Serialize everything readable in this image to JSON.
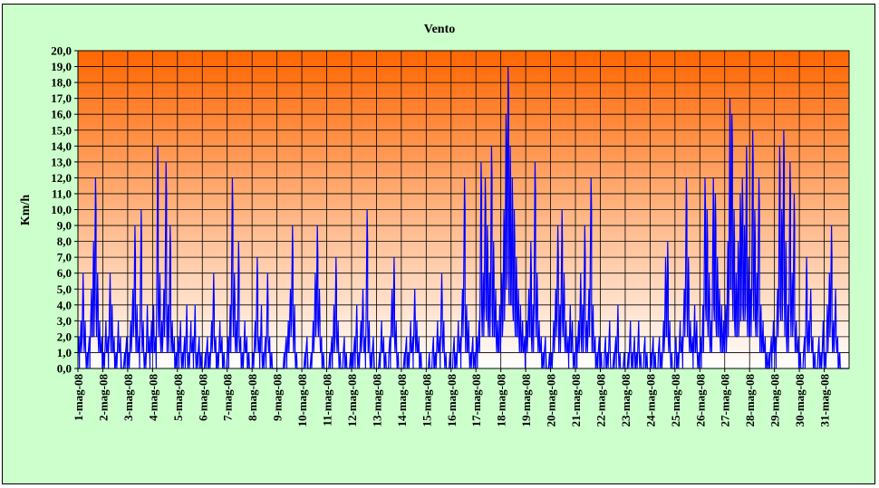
{
  "chart_data": {
    "type": "line",
    "title": "Vento",
    "xlabel": "",
    "ylabel": "Km/h",
    "ylim": [
      0,
      20
    ],
    "ytick_step": 1,
    "grid": true,
    "legend": "none",
    "plot_background": "gradient orange (#ff6600) top to white (#ffffff) bottom",
    "colors": {
      "series": "#0000ff",
      "frame_bg": "#ccffcc",
      "bg_top": "#ff6600",
      "bg_bottom": "#ffffff",
      "grid": "#000000"
    },
    "categories": [
      "1-mag-08",
      "2-mag-08",
      "3-mag-08",
      "4-mag-08",
      "5-mag-08",
      "6-mag-08",
      "7-mag-08",
      "8-mag-08",
      "9-mag-08",
      "10-mag-08",
      "11-mag-08",
      "12-mag-08",
      "13-mag-08",
      "14-mag-08",
      "15-mag-08",
      "16-mag-08",
      "17-mag-08",
      "18-mag-08",
      "19-mag-08",
      "20-mag-08",
      "21-mag-08",
      "22-mag-08",
      "23-mag-08",
      "24-mag-08",
      "25-mag-08",
      "26-mag-08",
      "27-mag-08",
      "28-mag-08",
      "29-mag-08",
      "30-mag-08",
      "31-mag-08"
    ],
    "series": [
      {
        "values": [
          [
            2,
            3,
            6,
            3,
            1,
            2,
            5,
            8,
            12,
            6,
            3,
            2
          ],
          [
            1,
            3,
            2,
            6,
            4,
            2,
            1,
            3,
            2,
            0,
            1,
            2
          ],
          [
            1,
            3,
            5,
            9,
            4,
            2,
            10,
            3,
            1,
            4,
            2,
            3
          ],
          [
            4,
            2,
            14,
            6,
            3,
            5,
            13,
            4,
            9,
            3,
            2,
            1
          ],
          [
            2,
            3,
            1,
            2,
            4,
            1,
            3,
            2,
            4,
            1,
            2,
            1
          ],
          [
            0,
            1,
            2,
            1,
            3,
            6,
            2,
            1,
            3,
            2,
            1,
            0
          ],
          [
            2,
            4,
            12,
            6,
            3,
            8,
            2,
            1,
            3,
            2,
            1,
            0
          ],
          [
            1,
            3,
            7,
            2,
            4,
            1,
            2,
            6,
            2,
            1,
            0,
            0
          ],
          [
            0,
            0,
            0,
            1,
            2,
            3,
            5,
            9,
            4,
            1,
            0,
            0
          ],
          [
            0,
            1,
            2,
            0,
            1,
            3,
            6,
            9,
            5,
            2,
            1,
            0
          ],
          [
            0,
            1,
            2,
            4,
            7,
            3,
            1,
            0,
            2,
            1,
            0,
            1
          ],
          [
            1,
            2,
            4,
            1,
            3,
            5,
            2,
            10,
            3,
            1,
            2,
            0
          ],
          [
            0,
            1,
            3,
            2,
            1,
            0,
            2,
            5,
            7,
            3,
            1,
            0
          ],
          [
            0,
            1,
            2,
            1,
            3,
            2,
            5,
            3,
            2,
            1,
            0,
            0
          ],
          [
            0,
            1,
            0,
            2,
            1,
            3,
            2,
            6,
            3,
            1,
            0,
            1
          ],
          [
            0,
            2,
            1,
            3,
            2,
            5,
            12,
            4,
            3,
            1,
            2,
            1
          ],
          [
            2,
            3,
            13,
            6,
            12,
            9,
            6,
            14,
            8,
            5,
            3,
            4
          ],
          [
            6,
            10,
            16,
            19,
            14,
            12,
            10,
            7,
            5,
            4,
            3,
            2
          ],
          [
            3,
            5,
            8,
            4,
            13,
            6,
            3,
            2,
            1,
            2,
            0,
            1
          ],
          [
            1,
            3,
            5,
            9,
            4,
            10,
            6,
            3,
            2,
            4,
            3,
            1
          ],
          [
            2,
            3,
            6,
            4,
            9,
            3,
            5,
            12,
            4,
            2,
            1,
            2
          ],
          [
            1,
            0,
            2,
            1,
            3,
            0,
            1,
            2,
            4,
            1,
            0,
            1
          ],
          [
            0,
            1,
            3,
            1,
            2,
            1,
            3,
            1,
            0,
            2,
            1,
            0
          ],
          [
            1,
            2,
            1,
            0,
            2,
            1,
            3,
            7,
            8,
            3,
            1,
            0
          ],
          [
            2,
            1,
            3,
            2,
            5,
            12,
            7,
            3,
            2,
            4,
            3,
            1
          ],
          [
            2,
            4,
            12,
            10,
            6,
            3,
            12,
            11,
            7,
            5,
            4,
            3
          ],
          [
            4,
            8,
            17,
            16,
            10,
            6,
            8,
            11,
            12,
            9,
            14,
            7
          ],
          [
            5,
            15,
            10,
            6,
            12,
            4,
            3,
            2,
            1,
            1,
            2,
            3
          ],
          [
            2,
            5,
            14,
            10,
            15,
            8,
            4,
            13,
            6,
            11,
            3,
            2
          ],
          [
            1,
            0,
            2,
            7,
            3,
            5,
            2,
            1,
            0,
            2,
            1,
            3
          ],
          [
            1,
            4,
            6,
            9,
            3,
            5,
            2,
            1,
            0,
            0,
            0,
            0
          ]
        ]
      }
    ]
  }
}
